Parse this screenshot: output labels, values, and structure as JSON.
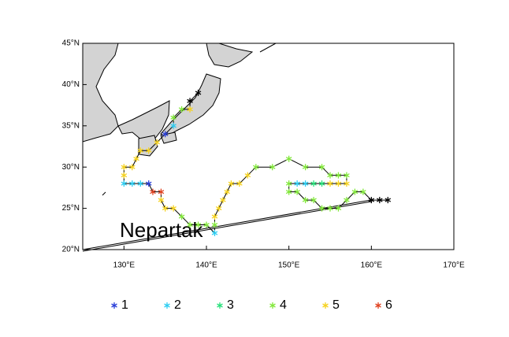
{
  "chart_data": {
    "type": "track",
    "label": "Nepartak",
    "xlim": [
      125,
      170
    ],
    "ylim": [
      20,
      45
    ],
    "xticks": [
      {
        "value": 130,
        "label": "130°E"
      },
      {
        "value": 140,
        "label": "140°E"
      },
      {
        "value": 150,
        "label": "150°E"
      },
      {
        "value": 160,
        "label": "160°E"
      },
      {
        "value": 170,
        "label": "170°E"
      }
    ],
    "yticks": [
      {
        "value": 20,
        "label": "20°N"
      },
      {
        "value": 25,
        "label": "25°N"
      },
      {
        "value": 30,
        "label": "30°N"
      },
      {
        "value": 35,
        "label": "35°N"
      },
      {
        "value": 40,
        "label": "40°N"
      },
      {
        "value": 45,
        "label": "45°N"
      }
    ],
    "series": [
      {
        "name": "1",
        "color": "#2a3fd8"
      },
      {
        "name": "2",
        "color": "#2ccdf2"
      },
      {
        "name": "3",
        "color": "#27e07a"
      },
      {
        "name": "4",
        "color": "#82e83a"
      },
      {
        "name": "5",
        "color": "#f5d21e"
      },
      {
        "name": "6",
        "color": "#e0401e"
      }
    ],
    "track_color": "#000000",
    "x": [
      162,
      161,
      160,
      159,
      158,
      157,
      156,
      155,
      154,
      153,
      152,
      151,
      150,
      150,
      151,
      152,
      153,
      154,
      155,
      156,
      157,
      157,
      156,
      155,
      154,
      152,
      150,
      148,
      146,
      145,
      144,
      143,
      142.5,
      142,
      141.5,
      141,
      141,
      141,
      140,
      139,
      138,
      137,
      136,
      135,
      134.5,
      134.5,
      133.5,
      133,
      132,
      131,
      130,
      130,
      130,
      131,
      131.5,
      132,
      133,
      134,
      135,
      136,
      136,
      137,
      138,
      138,
      139
    ],
    "y": [
      26,
      26,
      26,
      27,
      27,
      26,
      25,
      25,
      25,
      26,
      26,
      27,
      27,
      28,
      28,
      28,
      28,
      28,
      28,
      28,
      28,
      29,
      29,
      29,
      30,
      30,
      31,
      30,
      30,
      29,
      28,
      28,
      27,
      26,
      25,
      24,
      23,
      22,
      23,
      23,
      23,
      24,
      25,
      25,
      26,
      27,
      27,
      28,
      28,
      28,
      28,
      29,
      30,
      30,
      31,
      32,
      32,
      33,
      34,
      35,
      36,
      37,
      37,
      38,
      39
    ],
    "category": [
      null,
      null,
      null,
      4,
      4,
      4,
      4,
      4,
      4,
      4,
      4,
      4,
      4,
      4,
      2,
      2,
      3,
      3,
      5,
      5,
      5,
      4,
      4,
      4,
      4,
      4,
      4,
      4,
      4,
      5,
      5,
      5,
      5,
      5,
      5,
      5,
      4,
      2,
      4,
      4,
      4,
      4,
      5,
      5,
      5,
      6,
      6,
      1,
      2,
      2,
      2,
      5,
      5,
      5,
      5,
      5,
      5,
      5,
      1,
      2,
      4,
      4,
      5,
      null,
      null
    ]
  }
}
